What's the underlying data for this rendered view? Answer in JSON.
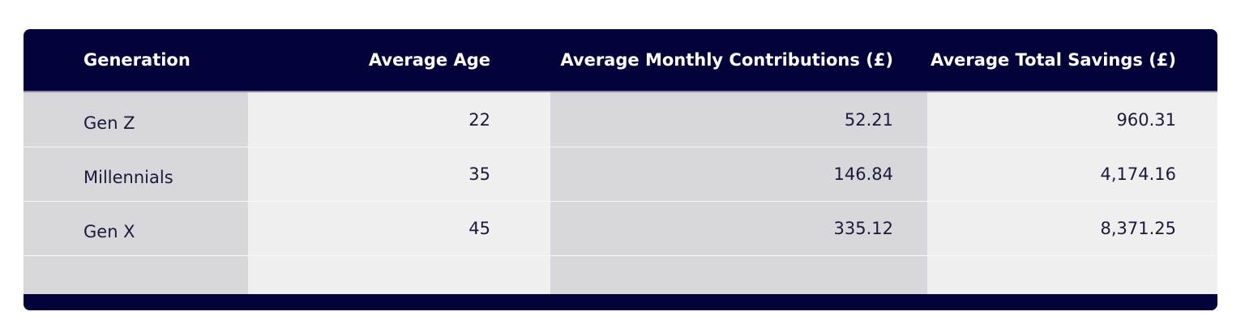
{
  "table": {
    "headers": [
      "Generation",
      "Average Age",
      "Average Monthly Contributions (£)",
      "Average Total Savings (£)"
    ],
    "rows": [
      {
        "generation": "Gen Z",
        "age": "22",
        "monthly": "52.21",
        "savings": "960.31"
      },
      {
        "generation": "Millennials",
        "age": "35",
        "monthly": "146.84",
        "savings": "4,174.16"
      },
      {
        "generation": "Gen X",
        "age": "45",
        "monthly": "335.12",
        "savings": "8,371.25"
      }
    ]
  },
  "colors": {
    "header_bg": "#03033a",
    "shade_dark": "#d8d7dc",
    "shade_light": "#efefef",
    "text": "#1a1a3a"
  }
}
